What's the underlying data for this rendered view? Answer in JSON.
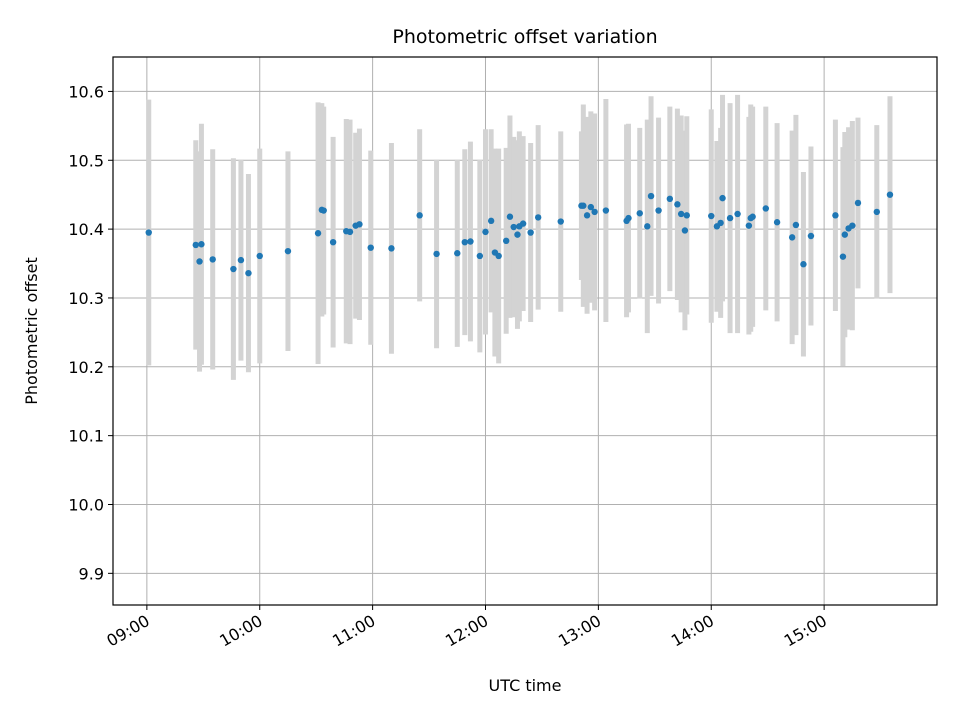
{
  "chart_data": {
    "type": "scatter",
    "title": "Photometric offset variation",
    "xlabel": "UTC time",
    "ylabel": "Photometric offset",
    "grid": true,
    "xlim": [
      "08:42",
      "16:00"
    ],
    "ylim": [
      9.854,
      10.65
    ],
    "x_ticks": [
      "09:00",
      "10:00",
      "11:00",
      "12:00",
      "13:00",
      "14:00",
      "15:00"
    ],
    "y_ticks": [
      "9.9",
      "10.0",
      "10.1",
      "10.2",
      "10.3",
      "10.4",
      "10.5",
      "10.6"
    ],
    "colors": {
      "points": "#1f77b4",
      "errorbars": "#d3d3d3",
      "grid": "#b0b0b0"
    },
    "series": [
      {
        "x": [
          "09:01",
          "09:26",
          "09:28",
          "09:29",
          "09:35",
          "09:46",
          "09:50",
          "09:54",
          "10:00",
          "10:15",
          "10:31",
          "10:33",
          "10:34",
          "10:39",
          "10:46",
          "10:48",
          "10:51",
          "10:53",
          "10:59",
          "11:10",
          "11:25",
          "11:34",
          "11:45",
          "11:49",
          "11:52",
          "11:57",
          "12:00",
          "12:03",
          "12:05",
          "12:07",
          "12:11",
          "12:13",
          "12:15",
          "12:17",
          "12:18",
          "12:20",
          "12:24",
          "12:28",
          "12:40",
          "12:51",
          "12:52",
          "12:54",
          "12:56",
          "12:58",
          "13:04",
          "13:15",
          "13:16",
          "13:22",
          "13:26",
          "13:28",
          "13:32",
          "13:38",
          "13:42",
          "13:44",
          "13:46",
          "13:47",
          "14:00",
          "14:03",
          "14:05",
          "14:06",
          "14:10",
          "14:14",
          "14:20",
          "14:21",
          "14:22",
          "14:29",
          "14:35",
          "14:43",
          "14:45",
          "14:49",
          "14:53",
          "15:06",
          "15:10",
          "15:11",
          "15:13",
          "15:15",
          "15:18",
          "15:28",
          "15:35"
        ],
        "y": [
          10.395,
          10.377,
          10.353,
          10.378,
          10.356,
          10.342,
          10.355,
          10.336,
          10.361,
          10.368,
          10.394,
          10.428,
          10.427,
          10.381,
          10.397,
          10.396,
          10.405,
          10.407,
          10.373,
          10.372,
          10.42,
          10.364,
          10.365,
          10.381,
          10.382,
          10.361,
          10.396,
          10.412,
          10.366,
          10.361,
          10.383,
          10.418,
          10.403,
          10.392,
          10.404,
          10.408,
          10.395,
          10.417,
          10.411,
          10.434,
          10.434,
          10.42,
          10.432,
          10.425,
          10.427,
          10.412,
          10.416,
          10.423,
          10.404,
          10.448,
          10.427,
          10.444,
          10.436,
          10.422,
          10.398,
          10.42,
          10.419,
          10.404,
          10.409,
          10.445,
          10.416,
          10.422,
          10.405,
          10.416,
          10.418,
          10.43,
          10.41,
          10.388,
          10.406,
          10.349,
          10.39,
          10.42,
          10.36,
          10.392,
          10.401,
          10.405,
          10.438,
          10.425,
          10.45
        ],
        "err": [
          0.193,
          0.152,
          0.16,
          0.175,
          0.16,
          0.161,
          0.146,
          0.144,
          0.156,
          0.145,
          0.19,
          0.155,
          0.151,
          0.153,
          0.163,
          0.163,
          0.135,
          0.139,
          0.141,
          0.153,
          0.125,
          0.137,
          0.136,
          0.135,
          0.145,
          0.14,
          0.149,
          0.133,
          0.151,
          0.156,
          0.135,
          0.147,
          0.131,
          0.137,
          0.138,
          0.127,
          0.13,
          0.134,
          0.131,
          0.108,
          0.147,
          0.143,
          0.139,
          0.143,
          0.162,
          0.14,
          0.137,
          0.124,
          0.155,
          0.145,
          0.135,
          0.134,
          0.139,
          0.143,
          0.145,
          0.144,
          0.155,
          0.124,
          0.138,
          0.15,
          0.167,
          0.173,
          0.158,
          0.165,
          0.16,
          0.148,
          0.144,
          0.155,
          0.16,
          0.134,
          0.13,
          0.139,
          0.159,
          0.149,
          0.147,
          0.152,
          0.124,
          0.126,
          0.143
        ]
      }
    ]
  }
}
